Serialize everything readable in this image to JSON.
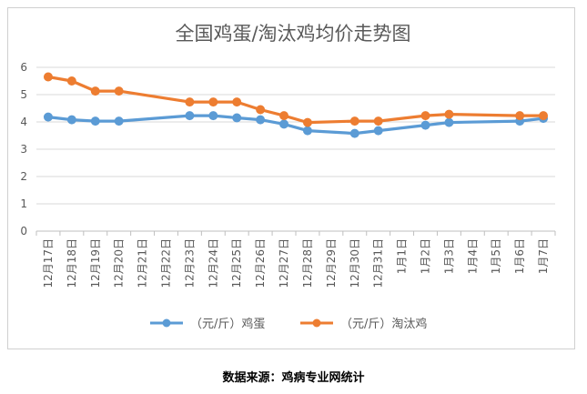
{
  "chart_data": {
    "type": "line",
    "title": "全国鸡蛋/淘汰鸡均价走势图",
    "categories": [
      "12月17日",
      "12月18日",
      "12月19日",
      "12月20日",
      "12月21日",
      "12月22日",
      "12月23日",
      "12月24日",
      "12月25日",
      "12月26日",
      "12月27日",
      "12月28日",
      "12月29日",
      "12月30日",
      "12月31日",
      "1月1日",
      "1月2日",
      "1月3日",
      "1月4日",
      "1月5日",
      "1月6日",
      "1月7日"
    ],
    "series": [
      {
        "name": "（元/斤）鸡蛋",
        "color": "#5b9bd5",
        "values": [
          4.18,
          4.08,
          4.03,
          4.03,
          null,
          null,
          4.23,
          4.23,
          4.15,
          4.08,
          3.92,
          3.68,
          null,
          3.58,
          3.68,
          null,
          3.88,
          3.98,
          null,
          null,
          4.03,
          4.13
        ]
      },
      {
        "name": "（元/斤）淘汰鸡",
        "color": "#ed7d31",
        "values": [
          5.65,
          5.5,
          5.13,
          5.13,
          null,
          null,
          4.73,
          4.73,
          4.73,
          4.45,
          4.23,
          3.98,
          null,
          4.03,
          4.03,
          null,
          4.23,
          4.28,
          null,
          null,
          4.23,
          4.23
        ]
      }
    ],
    "ylim": [
      0,
      6
    ],
    "yticks": [
      0,
      1,
      2,
      3,
      4,
      5,
      6
    ],
    "grid": true,
    "legend": "bottom"
  },
  "source": "数据来源：鸡病专业网统计"
}
